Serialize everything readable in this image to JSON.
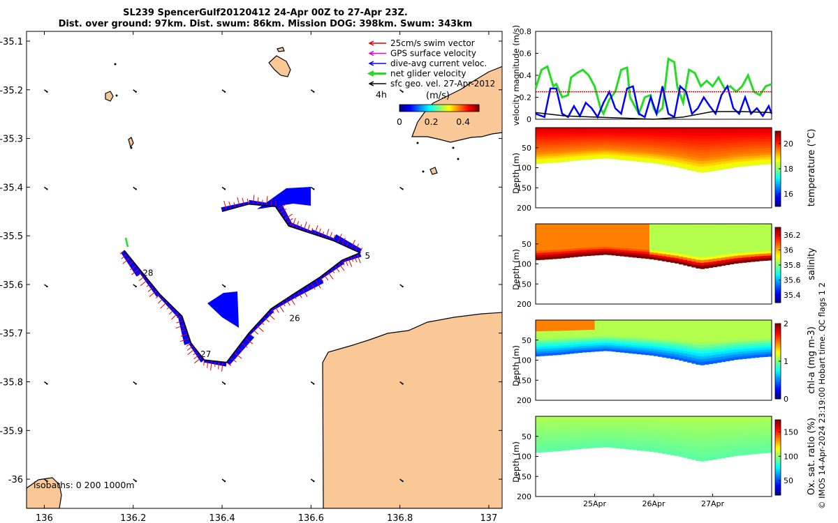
{
  "header": {
    "title_line1": "SL239 SpencerGulf20120412 24-Apr 00Z to 27-Apr 23Z.",
    "title_line2": "Dist. over ground: 97km. Dist. swum: 86km. Mission DOG: 398km. Swum: 343km"
  },
  "copyright": "© IMOS 14-Apr-2024 23:19:00 Hobart time. QC flags 1  2",
  "colors": {
    "land": "#f9c896",
    "swim": "#e00000",
    "gps": "#e000e0",
    "current": "#0000ff",
    "net": "#22dd22",
    "sfc": "#000000"
  },
  "chart_data": [
    {
      "type": "map",
      "xlim": [
        135.96,
        137.03
      ],
      "ylim": [
        -36.06,
        -35.08
      ],
      "x_ticks": [
        136,
        136.2,
        136.4,
        136.6,
        136.8,
        137
      ],
      "x_tick_labels": [
        "136",
        "136.2",
        "136.4",
        "136.6",
        "136.8",
        "137"
      ],
      "y_ticks": [
        -35.1,
        -35.2,
        -35.3,
        -35.4,
        -35.5,
        -35.6,
        -35.7,
        -35.8,
        -35.9,
        -36
      ],
      "y_tick_labels": [
        "-35.1",
        "-35.2",
        "-35.3",
        "-35.4",
        "-35.5",
        "-35.6",
        "-35.7",
        "-35.8",
        "-35.9",
        "-36"
      ],
      "legend": {
        "position": "top-right",
        "entries": [
          {
            "label": "25cm/s swim vector",
            "color": "#e00000"
          },
          {
            "label": "GPS surface velocity",
            "color": "#e000e0"
          },
          {
            "label": "dive-avg current veloc.",
            "color": "#0000ff"
          },
          {
            "label": "net glider velocity",
            "color": "#22dd22"
          },
          {
            "label": "sfc geo. vel. 27-Apr-2012",
            "color": "#000000"
          }
        ],
        "scale_label": "4h",
        "colorbar_unit": "(m/s)",
        "colorbar_ticks": [
          0,
          0.2,
          0.4
        ],
        "colorbar_tick_labels": [
          "0",
          "0.2",
          "0.4"
        ],
        "colorbar_range": [
          0,
          0.5
        ]
      },
      "isobath_label": "isobaths: 0   200  1000m",
      "track": [
        [
          136.18,
          -35.53
        ],
        [
          136.22,
          -35.575
        ],
        [
          136.26,
          -35.62
        ],
        [
          136.31,
          -35.665
        ],
        [
          136.33,
          -35.72
        ],
        [
          136.36,
          -35.755
        ],
        [
          136.41,
          -35.76
        ],
        [
          136.46,
          -35.7
        ],
        [
          136.51,
          -35.65
        ],
        [
          136.56,
          -35.62
        ],
        [
          136.62,
          -35.585
        ],
        [
          136.67,
          -35.55
        ],
        [
          136.71,
          -35.535
        ],
        [
          136.65,
          -35.51
        ],
        [
          136.6,
          -35.495
        ],
        [
          136.55,
          -35.48
        ],
        [
          136.52,
          -35.44
        ],
        [
          136.46,
          -35.435
        ],
        [
          136.4,
          -35.45
        ]
      ],
      "day_labels": [
        {
          "label": "28",
          "lon": 136.215,
          "lat": -35.575
        },
        {
          "label": "5",
          "lon": 136.715,
          "lat": -35.54
        },
        {
          "label": "26",
          "lon": 136.545,
          "lat": -35.668
        },
        {
          "label": "27",
          "lon": 136.345,
          "lat": -35.742
        }
      ],
      "sfc_vector_grid": {
        "lons": [
          136,
          136.2,
          136.4,
          136.6,
          136.8
        ],
        "lats": [
          -35.2,
          -35.4,
          -35.6,
          -35.8,
          -36.0
        ]
      }
    },
    {
      "type": "line",
      "ylabel": "velocity magnitude (m/s)",
      "ylim": [
        0,
        0.8
      ],
      "y_ticks": [
        0,
        0.2,
        0.4,
        0.6,
        0.8
      ],
      "y_tick_labels": [
        "0",
        "0.2",
        "0.4",
        "0.6",
        "0.8"
      ],
      "xlim": [
        24.0,
        28.0
      ],
      "series": [
        {
          "name": "net glider velocity",
          "color": "#22dd22",
          "x": [
            24.0,
            24.1,
            24.2,
            24.3,
            24.35,
            24.45,
            24.55,
            24.6,
            24.7,
            24.8,
            24.9,
            25.0,
            25.1,
            25.15,
            25.25,
            25.35,
            25.45,
            25.55,
            25.6,
            25.7,
            25.75,
            25.85,
            25.95,
            26.0,
            26.05,
            26.15,
            26.25,
            26.35,
            26.4,
            26.5,
            26.6,
            26.7,
            26.8,
            26.9,
            27.0,
            27.1,
            27.2,
            27.3,
            27.4,
            27.5,
            27.6,
            27.7,
            27.8,
            27.9,
            28.0
          ],
          "values": [
            0.28,
            0.45,
            0.48,
            0.3,
            0.32,
            0.2,
            0.22,
            0.38,
            0.42,
            0.45,
            0.4,
            0.3,
            0.1,
            0.05,
            0.18,
            0.25,
            0.45,
            0.47,
            0.2,
            0.1,
            0.05,
            0.2,
            0.22,
            0.1,
            0.05,
            0.1,
            0.55,
            0.52,
            0.3,
            0.15,
            0.45,
            0.42,
            0.3,
            0.35,
            0.3,
            0.38,
            0.28,
            0.3,
            0.25,
            0.3,
            0.4,
            0.25,
            0.22,
            0.3,
            0.32
          ]
        },
        {
          "name": "dive-avg current veloc.",
          "color": "#0000ff",
          "x": [
            24.0,
            24.15,
            24.25,
            24.35,
            24.45,
            24.55,
            24.65,
            24.75,
            24.85,
            24.95,
            25.05,
            25.15,
            25.25,
            25.35,
            25.45,
            25.55,
            25.65,
            25.75,
            25.85,
            25.95,
            26.05,
            26.15,
            26.25,
            26.35,
            26.45,
            26.55,
            26.65,
            26.75,
            26.85,
            26.95,
            27.05,
            27.15,
            27.25,
            27.35,
            27.45,
            27.55,
            27.65,
            27.75,
            27.85,
            27.95,
            28.0
          ],
          "values": [
            0.05,
            0.02,
            0.28,
            0.28,
            0.05,
            0.02,
            0.12,
            0.03,
            0.15,
            0.1,
            0.02,
            0.15,
            0.25,
            0.1,
            0.05,
            0.28,
            0.3,
            0.05,
            0.02,
            0.2,
            0.05,
            0.3,
            0.05,
            0.02,
            0.3,
            0.25,
            0.05,
            0.1,
            0.2,
            0.12,
            0.05,
            0.22,
            0.3,
            0.1,
            0.05,
            0.2,
            0.05,
            0.1,
            0.03,
            0.12,
            0.05
          ]
        },
        {
          "name": "swim speed",
          "color": "#e00000",
          "x": [
            24.0,
            28.0
          ],
          "values": [
            0.25,
            0.25
          ]
        },
        {
          "name": "sfc geo. vel.",
          "color": "#000000",
          "x": [
            24.0,
            24.5,
            25.0,
            25.5,
            26.0,
            26.5,
            27.0,
            27.5,
            28.0
          ],
          "values": [
            0.06,
            0.03,
            0.02,
            0.01,
            0.0,
            0.02,
            0.07,
            0.07,
            0.06
          ]
        }
      ]
    },
    {
      "type": "heatmap",
      "ylabel": "Depth (m)",
      "colorbar_label": "temperature (°C)",
      "ylim": [
        200,
        0
      ],
      "y_ticks": [
        50,
        100,
        150,
        200
      ],
      "y_tick_labels": [
        "50",
        "100",
        "150",
        "200"
      ],
      "clim": [
        15,
        21
      ],
      "colorbar_ticks": [
        16,
        18,
        20
      ],
      "colorbar_tick_labels": [
        "16",
        "18",
        "20"
      ],
      "xlim": [
        24.0,
        28.0
      ],
      "bottom_depth": {
        "x": [
          24.0,
          24.4,
          24.8,
          25.2,
          25.6,
          26.0,
          26.4,
          26.8,
          27.0,
          27.4,
          27.8,
          28.0
        ],
        "values": [
          90,
          86,
          80,
          76,
          82,
          88,
          98,
          112,
          108,
          98,
          92,
          90
        ]
      },
      "layers": {
        "surface": 20.5,
        "mid": 19.5,
        "bottom": 18.5
      }
    },
    {
      "type": "heatmap",
      "ylabel": "Depth (m)",
      "colorbar_label": "salinity",
      "ylim": [
        200,
        0
      ],
      "y_ticks": [
        50,
        100,
        150,
        200
      ],
      "y_tick_labels": [
        "50",
        "100",
        "150",
        "200"
      ],
      "clim": [
        35.3,
        36.3
      ],
      "colorbar_ticks": [
        35.4,
        35.6,
        35.8,
        36,
        36.2
      ],
      "colorbar_tick_labels": [
        "35.4",
        "35.6",
        "35.8",
        "36",
        "36.2"
      ],
      "xlim": [
        24.0,
        28.0
      ],
      "bottom_depth": {
        "x": [
          24.0,
          24.4,
          24.8,
          25.2,
          25.6,
          26.0,
          26.4,
          26.8,
          27.0,
          27.4,
          27.8,
          28.0
        ],
        "values": [
          90,
          86,
          80,
          76,
          82,
          88,
          98,
          112,
          108,
          98,
          92,
          90
        ]
      },
      "layers": {
        "left_surface": 36.05,
        "right_surface": 35.85,
        "bottom": 36.3
      }
    },
    {
      "type": "heatmap",
      "ylabel": "Depth (m)",
      "colorbar_label": "chl-a (mg m-3)",
      "ylim": [
        200,
        0
      ],
      "y_ticks": [
        50,
        100,
        150,
        200
      ],
      "y_tick_labels": [
        "50",
        "100",
        "150",
        "200"
      ],
      "clim": [
        0,
        2
      ],
      "colorbar_ticks": [
        0,
        1,
        2
      ],
      "colorbar_tick_labels": [
        "0",
        "1",
        "2"
      ],
      "xlim": [
        24.0,
        28.0
      ],
      "bottom_depth": {
        "x": [
          24.0,
          24.4,
          24.8,
          25.2,
          25.6,
          26.0,
          26.4,
          26.8,
          27.0,
          27.4,
          27.8,
          28.0
        ],
        "values": [
          90,
          86,
          80,
          76,
          82,
          88,
          98,
          112,
          108,
          98,
          92,
          90
        ]
      },
      "layers": {
        "surface": 1.1,
        "bottom": 0.4
      }
    },
    {
      "type": "heatmap",
      "ylabel": "Depth (m)",
      "colorbar_label": "Ox. sat. ratio (%)",
      "ylim": [
        200,
        0
      ],
      "y_ticks": [
        50,
        100,
        150,
        200
      ],
      "y_tick_labels": [
        "50",
        "100",
        "150",
        "200"
      ],
      "clim": [
        20,
        175
      ],
      "colorbar_ticks": [
        50,
        100,
        150
      ],
      "colorbar_tick_labels": [
        "50",
        "100",
        "150"
      ],
      "xlim": [
        24.0,
        28.0
      ],
      "x_ticks": [
        25,
        26,
        27
      ],
      "x_tick_labels": [
        "25Apr",
        "26Apr",
        "27Apr"
      ],
      "bottom_depth": {
        "x": [
          24.0,
          24.4,
          24.8,
          25.2,
          25.6,
          26.0,
          26.4,
          26.8,
          27.0,
          27.4,
          27.8,
          28.0
        ],
        "values": [
          90,
          86,
          80,
          76,
          82,
          88,
          98,
          112,
          108,
          98,
          92,
          90
        ]
      },
      "layers": {
        "surface": 105,
        "bottom": 92
      }
    }
  ]
}
